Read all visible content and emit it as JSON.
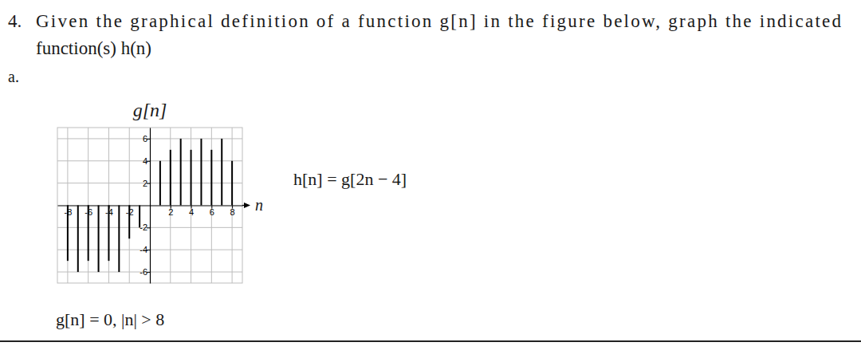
{
  "problem": {
    "number": "4.",
    "text_lines": [
      "Given the graphical definition of a function g[n] in the figure below, graph the indicated",
      "function(s) h(n)"
    ],
    "part": "a.",
    "equation": "h[n] = g[2n − 4]",
    "condition": "g[n] = 0, |n| > 8"
  },
  "chart_data": {
    "type": "stem",
    "title": "g[n]",
    "x_label": "n",
    "x": [
      -8,
      -7,
      -6,
      -5,
      -4,
      -3,
      -2,
      -1,
      0,
      1,
      2,
      3,
      4,
      5,
      6,
      7,
      8
    ],
    "values": [
      -5,
      -6,
      -5,
      -6,
      -5,
      -6,
      -3,
      -2,
      0,
      4,
      5,
      6,
      5,
      6,
      5,
      6,
      4
    ],
    "color": "#000000",
    "xlim": [
      -9,
      9
    ],
    "ylim": [
      -7,
      7
    ],
    "xticks": [
      -8,
      -6,
      -4,
      -2,
      2,
      4,
      6,
      8
    ],
    "yticks": [
      -6,
      -4,
      -2,
      2,
      4,
      6
    ],
    "grid": true
  }
}
